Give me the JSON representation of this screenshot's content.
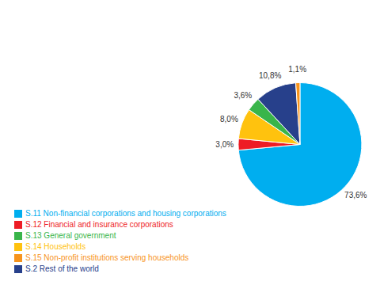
{
  "chart_data": {
    "type": "pie",
    "categories": [
      "S.11 Non-financial corporations and housing corporations",
      "S.12 Financial and insurance corporations",
      "S.14 Households",
      "S.13 General government",
      "S.2 Rest of the world",
      "S.15 Non-profit institutions serving households"
    ],
    "values": [
      73.6,
      3.0,
      8.0,
      3.6,
      10.8,
      1.1
    ],
    "value_labels": [
      "73,6%",
      "3,0%",
      "8,0%",
      "3,6%",
      "10,8%",
      "1,1%"
    ],
    "colors": [
      "#00AEEF",
      "#EE1C25",
      "#FFC20E",
      "#39B54A",
      "#27408B",
      "#F7941D"
    ],
    "data_labels": true,
    "legend": "lower left"
  }
}
